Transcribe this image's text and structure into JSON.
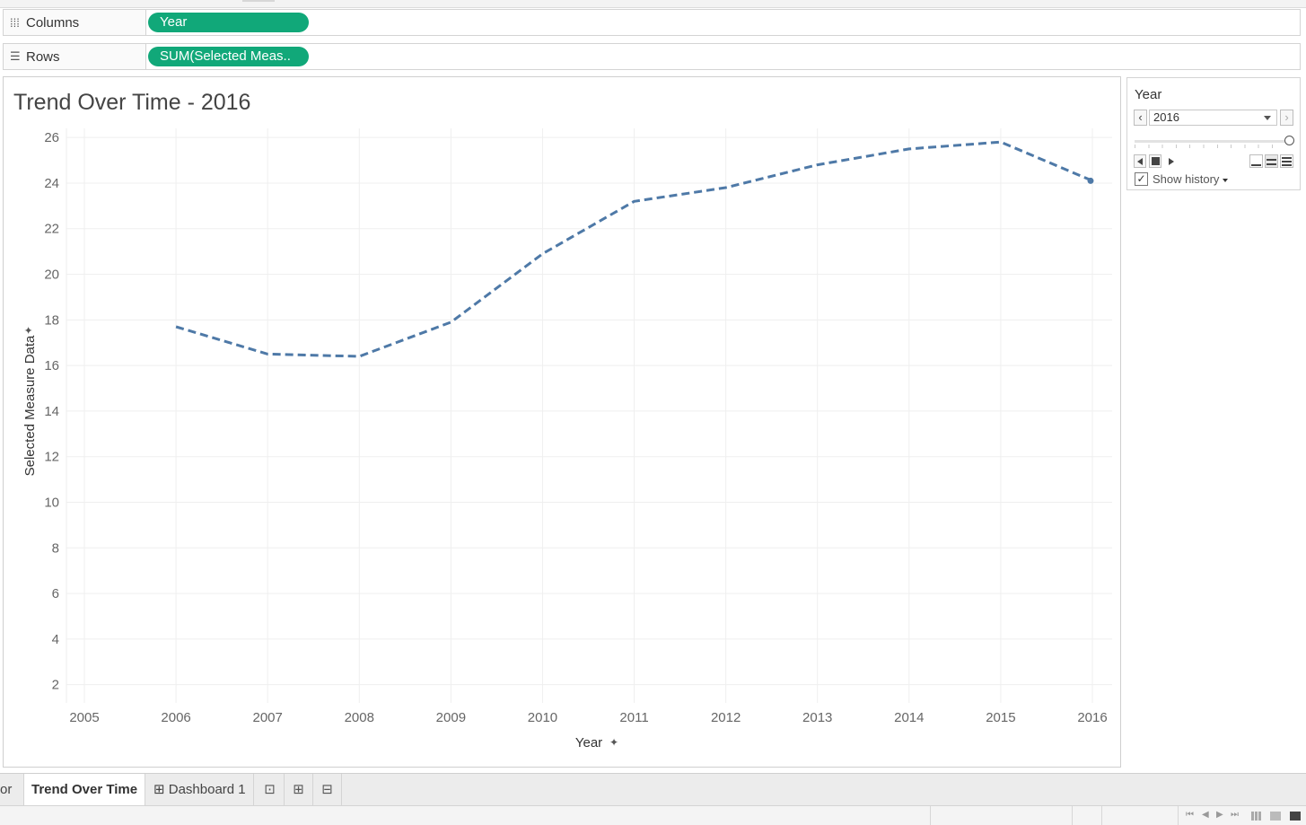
{
  "shelves": {
    "columns": {
      "label": "Columns",
      "pill": "Year"
    },
    "rows": {
      "label": "Rows",
      "pill": "SUM(Selected Meas.."
    }
  },
  "viz": {
    "title": "Trend Over Time - 2016"
  },
  "chart_data": {
    "type": "line",
    "title": "Trend Over Time - 2016",
    "xlabel": "Year",
    "ylabel": "Selected Measure Data",
    "x_ticks": [
      "2005",
      "2006",
      "2007",
      "2008",
      "2009",
      "2010",
      "2011",
      "2012",
      "2013",
      "2014",
      "2015",
      "2016"
    ],
    "y_ticks": [
      2,
      4,
      6,
      8,
      10,
      12,
      14,
      16,
      18,
      20,
      22,
      24,
      26
    ],
    "xlim": [
      2005,
      2016
    ],
    "ylim": [
      1.2,
      26.4
    ],
    "grid": true,
    "series": [
      {
        "line_style": "dashed",
        "color": "#4e79a7",
        "x": [
          2006,
          2007,
          2008,
          2009,
          2010,
          2011,
          2012,
          2013,
          2014,
          2015,
          2016
        ],
        "y": [
          17.7,
          16.5,
          16.4,
          17.9,
          20.9,
          23.2,
          23.8,
          24.8,
          25.5,
          25.8,
          24.1
        ]
      }
    ]
  },
  "filter": {
    "title": "Year",
    "selected": "2016",
    "show_history": "Show history",
    "show_history_checked": "✓"
  },
  "tabs": {
    "partial": "or",
    "active": "Trend Over Time",
    "dashboard_icon": "⊞",
    "dashboard": "Dashboard 1",
    "new_sheet_icon": "⊡",
    "new_dashboard_icon": "⊞",
    "new_story_icon": "⊟"
  },
  "icons": {
    "columns": "⁞⁞⁞",
    "rows": "☰",
    "pin": "📌",
    "prev": "‹",
    "next": "›",
    "status_first": "⏮",
    "status_prev": "◀",
    "status_next": "▶",
    "status_last": "⏭"
  }
}
